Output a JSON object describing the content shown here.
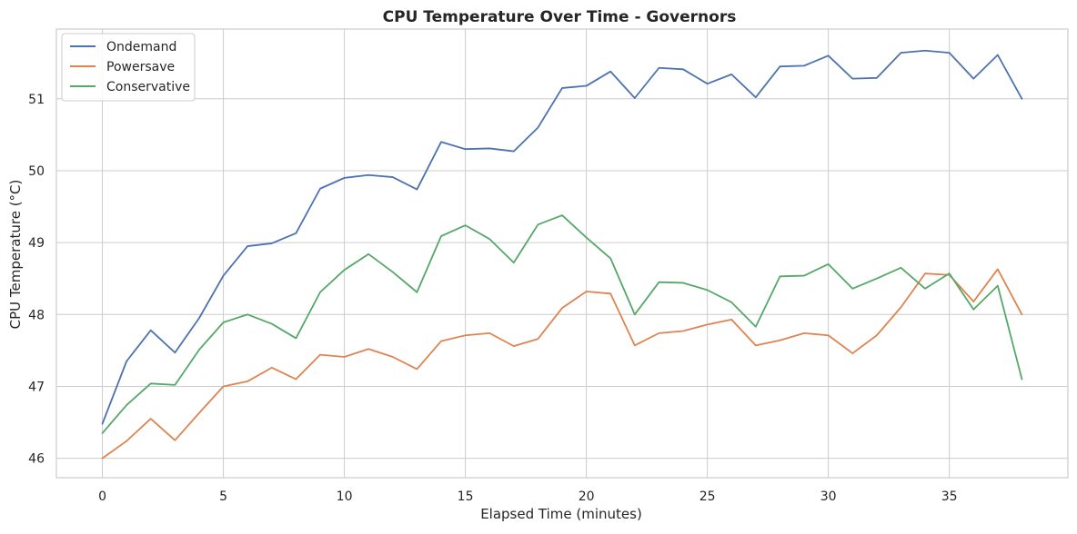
{
  "chart_data": {
    "type": "line",
    "title": "CPU Temperature Over Time - Governors",
    "xlabel": "Elapsed Time (minutes)",
    "ylabel": "CPU Temperature (°C)",
    "xlim": [
      -1.9,
      39.9
    ],
    "ylim": [
      45.73,
      51.97
    ],
    "x_ticks": [
      0,
      5,
      10,
      15,
      20,
      25,
      30,
      35
    ],
    "y_ticks": [
      46,
      47,
      48,
      49,
      50,
      51
    ],
    "grid": true,
    "legend_position": "top-left",
    "x": [
      0,
      1,
      2,
      3,
      4,
      5,
      6,
      7,
      8,
      9,
      10,
      11,
      12,
      13,
      14,
      15,
      16,
      17,
      18,
      19,
      20,
      21,
      22,
      23,
      24,
      25,
      26,
      27,
      28,
      29,
      30,
      31,
      32,
      33,
      34,
      35,
      36,
      37,
      38
    ],
    "series": [
      {
        "name": "Ondemand",
        "color": "#4c72b0",
        "values": [
          46.48,
          47.35,
          47.78,
          47.47,
          47.95,
          48.54,
          48.95,
          48.99,
          49.13,
          49.75,
          49.9,
          49.94,
          49.91,
          49.74,
          50.4,
          50.3,
          50.31,
          50.27,
          50.6,
          51.15,
          51.18,
          51.38,
          51.01,
          51.43,
          51.41,
          51.21,
          51.34,
          51.02,
          51.45,
          51.46,
          51.6,
          51.28,
          51.29,
          51.64,
          51.67,
          51.64,
          51.28,
          51.61,
          51.0
        ]
      },
      {
        "name": "Powersave",
        "color": "#dd8452",
        "values": [
          46.0,
          46.24,
          46.55,
          46.25,
          46.63,
          47.0,
          47.07,
          47.26,
          47.1,
          47.44,
          47.41,
          47.52,
          47.41,
          47.24,
          47.63,
          47.71,
          47.74,
          47.56,
          47.66,
          48.09,
          48.32,
          48.29,
          47.57,
          47.74,
          47.77,
          47.86,
          47.93,
          47.57,
          47.64,
          47.74,
          47.71,
          47.46,
          47.71,
          48.1,
          48.57,
          48.55,
          48.18,
          48.63,
          48.0
        ]
      },
      {
        "name": "Conservative",
        "color": "#55a868",
        "values": [
          46.35,
          46.74,
          47.04,
          47.02,
          47.51,
          47.89,
          48.0,
          47.87,
          47.67,
          48.31,
          48.62,
          48.84,
          48.59,
          48.31,
          49.09,
          49.24,
          49.05,
          48.72,
          49.25,
          49.38,
          49.07,
          48.78,
          48.0,
          48.45,
          48.44,
          48.34,
          48.17,
          47.83,
          48.53,
          48.54,
          48.7,
          48.36,
          48.5,
          48.65,
          48.36,
          48.57,
          48.07,
          48.4,
          47.1
        ]
      }
    ]
  }
}
